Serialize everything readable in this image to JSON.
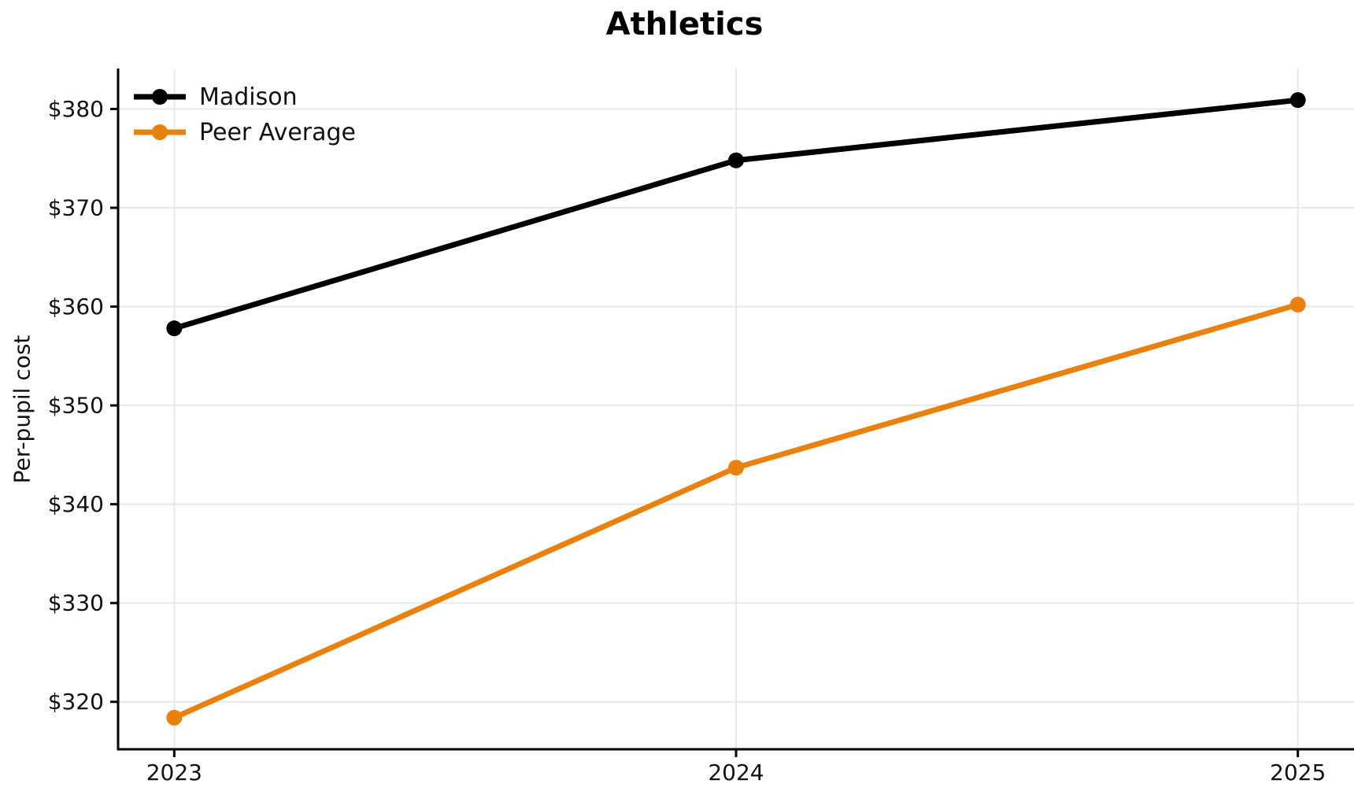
{
  "chart_data": {
    "type": "line",
    "title": "Athletics",
    "xlabel": "",
    "ylabel": "Per-pupil cost",
    "x": [
      2023,
      2024,
      2025
    ],
    "x_tick_labels": [
      "2023",
      "2024",
      "2025"
    ],
    "series": [
      {
        "name": "Madison",
        "color": "#000000",
        "values": [
          357.8,
          374.8,
          380.9
        ]
      },
      {
        "name": "Peer Average",
        "color": "#E8810E",
        "values": [
          318.4,
          343.7,
          360.2
        ]
      }
    ],
    "y_ticks": [
      320,
      330,
      340,
      350,
      360,
      370,
      380
    ],
    "y_tick_labels": [
      "$320",
      "$330",
      "$340",
      "$350",
      "$360",
      "$370",
      "$380"
    ],
    "xlim": [
      2022.9,
      2025.1
    ],
    "ylim": [
      315.2,
      384.1
    ],
    "grid": true,
    "grid_color": "#E8E8E8",
    "axis_color": "#000000",
    "tick_label_color": "#111111",
    "legend": {
      "position": "upper-left",
      "entries": [
        "Madison",
        "Peer Average"
      ]
    }
  }
}
